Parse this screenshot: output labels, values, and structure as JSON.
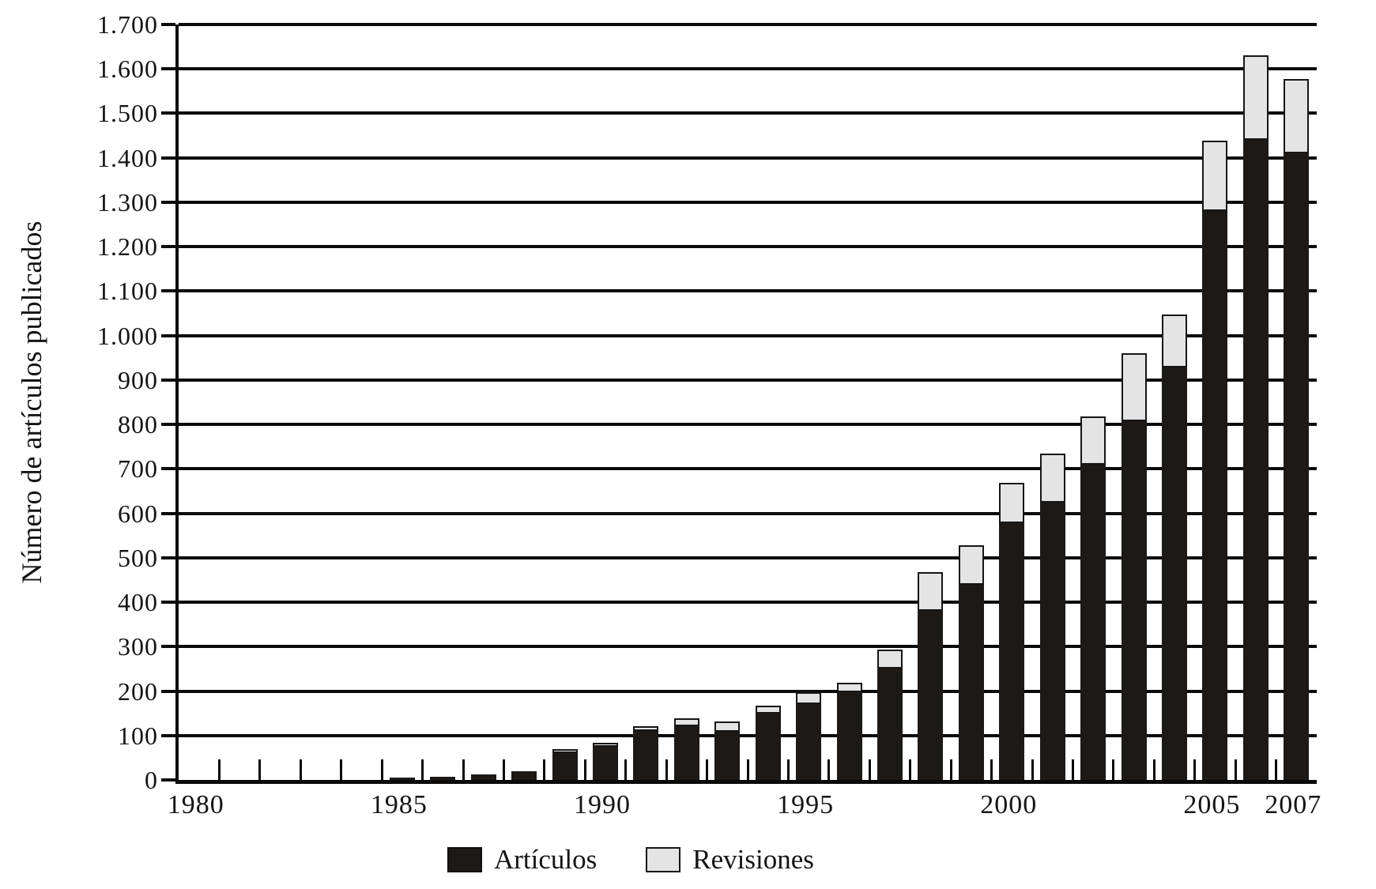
{
  "chart_data": {
    "type": "bar",
    "stacked": true,
    "title": "",
    "xlabel": "",
    "ylabel": "Número de artículos publicados",
    "ylim": [
      0,
      1700
    ],
    "grid": true,
    "legend_position": "bottom",
    "categories": [
      1980,
      1981,
      1982,
      1983,
      1984,
      1985,
      1986,
      1987,
      1988,
      1989,
      1990,
      1991,
      1992,
      1993,
      1994,
      1995,
      1996,
      1997,
      1998,
      1999,
      2000,
      2001,
      2002,
      2003,
      2004,
      2005,
      2006,
      2007
    ],
    "series": [
      {
        "name": "Artículos",
        "color": "#1c1917",
        "values": [
          0,
          0,
          0,
          0,
          0,
          5,
          8,
          12,
          20,
          60,
          75,
          110,
          121,
          109,
          150,
          170,
          198,
          250,
          380,
          440,
          578,
          625,
          710,
          808,
          928,
          1280,
          1440,
          1410
        ]
      },
      {
        "name": "Revisiones",
        "color": "#e4e4e4",
        "values": [
          0,
          0,
          0,
          0,
          0,
          0,
          0,
          0,
          0,
          10,
          8,
          11,
          18,
          22,
          18,
          28,
          20,
          43,
          88,
          88,
          90,
          110,
          108,
          152,
          120,
          158,
          190,
          168
        ]
      }
    ],
    "totals": [
      0,
      0,
      0,
      0,
      0,
      5,
      8,
      12,
      20,
      70,
      83,
      121,
      139,
      131,
      168,
      198,
      218,
      293,
      468,
      528,
      668,
      735,
      818,
      960,
      1048,
      1438,
      1630,
      1578
    ],
    "ytick_values": [
      0,
      100,
      200,
      300,
      400,
      500,
      600,
      700,
      800,
      900,
      1000,
      1100,
      1200,
      1300,
      1400,
      1500,
      1600,
      1700
    ],
    "ytick_labels": [
      "0",
      "100",
      "200",
      "300",
      "400",
      "500",
      "600",
      "700",
      "800",
      "900",
      "1.000",
      "1.100",
      "1.200",
      "1.300",
      "1.400",
      "1.500",
      "1.600",
      "1.700"
    ],
    "xtick_labels_shown": [
      {
        "label": "1980",
        "index": 0
      },
      {
        "label": "1985",
        "index": 5
      },
      {
        "label": "1990",
        "index": 10
      },
      {
        "label": "1995",
        "index": 15
      },
      {
        "label": "2000",
        "index": 20
      },
      {
        "label": "2005",
        "index": 25
      },
      {
        "label": "2007",
        "index": 27
      }
    ]
  },
  "legend": {
    "articulos_label": "Artículos",
    "revisiones_label": "Revisiones"
  },
  "colors": {
    "articulos": "#1c1917",
    "revisiones": "#e4e4e4",
    "axis": "#0a0a0a",
    "background": "#ffffff"
  }
}
